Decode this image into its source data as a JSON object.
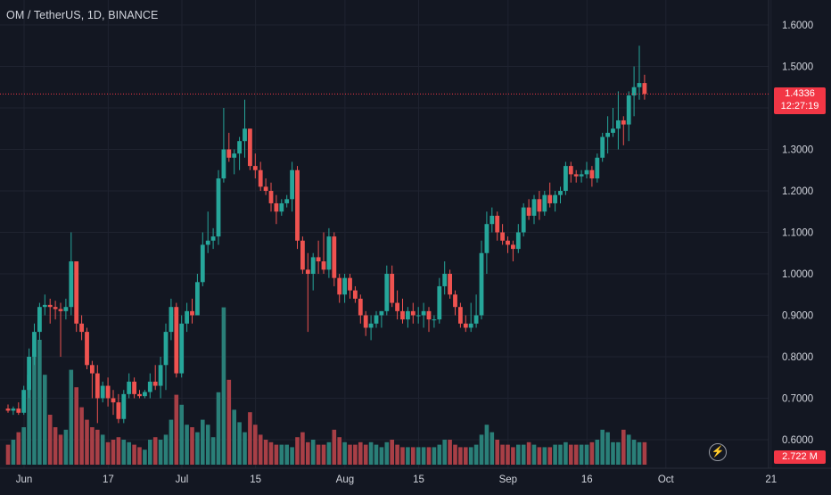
{
  "header": {
    "title": "OM / TetherUS, 1D, BINANCE"
  },
  "price_tag": {
    "price": "1.4336",
    "countdown": "12:27:19"
  },
  "volume_tag": {
    "value": "2.722 M"
  },
  "colors": {
    "up": "#26a69a",
    "down": "#ef5350",
    "vol_up": "#2a7f78",
    "vol_down": "#a83f46",
    "grid": "#1f2330",
    "text": "#d1d4dc",
    "price_line": "#f23645"
  },
  "chart_data": {
    "type": "candlestick",
    "title": "OM / TetherUS, 1D, BINANCE",
    "y_ticks": [
      "1.6000",
      "1.5000",
      "1.4000",
      "1.3000",
      "1.2000",
      "1.1000",
      "1.0000",
      "0.9000",
      "0.8000",
      "0.7000",
      "0.6000"
    ],
    "x_ticks": [
      {
        "label": "Jun",
        "day": 0
      },
      {
        "label": "17",
        "day": 16
      },
      {
        "label": "Jul",
        "day": 30
      },
      {
        "label": "15",
        "day": 44
      },
      {
        "label": "Aug",
        "day": 61
      },
      {
        "label": "15",
        "day": 75
      },
      {
        "label": "Sep",
        "day": 92
      },
      {
        "label": "16",
        "day": 107
      },
      {
        "label": "Oct",
        "day": 122
      },
      {
        "label": "21",
        "day": 142
      }
    ],
    "ylim": [
      0.55,
      1.66
    ],
    "grid": true,
    "last_price": 1.4336,
    "candles": [
      [
        0.675,
        0.685,
        0.665,
        0.67
      ],
      [
        0.67,
        0.68,
        0.66,
        0.675
      ],
      [
        0.675,
        0.69,
        0.66,
        0.665
      ],
      [
        0.665,
        0.73,
        0.66,
        0.72
      ],
      [
        0.72,
        0.82,
        0.7,
        0.8
      ],
      [
        0.8,
        0.88,
        0.78,
        0.86
      ],
      [
        0.86,
        0.93,
        0.84,
        0.92
      ],
      [
        0.92,
        0.95,
        0.9,
        0.925
      ],
      [
        0.925,
        0.94,
        0.88,
        0.92
      ],
      [
        0.92,
        0.935,
        0.89,
        0.915
      ],
      [
        0.915,
        0.93,
        0.8,
        0.91
      ],
      [
        0.91,
        0.94,
        0.89,
        0.92
      ],
      [
        0.92,
        1.1,
        0.9,
        1.03
      ],
      [
        1.03,
        1.03,
        0.86,
        0.88
      ],
      [
        0.88,
        0.9,
        0.84,
        0.86
      ],
      [
        0.86,
        0.87,
        0.77,
        0.78
      ],
      [
        0.78,
        0.79,
        0.7,
        0.76
      ],
      [
        0.76,
        0.78,
        0.64,
        0.7
      ],
      [
        0.7,
        0.74,
        0.69,
        0.73
      ],
      [
        0.73,
        0.75,
        0.68,
        0.7
      ],
      [
        0.7,
        0.72,
        0.66,
        0.69
      ],
      [
        0.69,
        0.71,
        0.64,
        0.65
      ],
      [
        0.65,
        0.72,
        0.64,
        0.71
      ],
      [
        0.71,
        0.76,
        0.7,
        0.74
      ],
      [
        0.74,
        0.75,
        0.7,
        0.71
      ],
      [
        0.71,
        0.72,
        0.7,
        0.705
      ],
      [
        0.705,
        0.72,
        0.7,
        0.715
      ],
      [
        0.715,
        0.76,
        0.7,
        0.74
      ],
      [
        0.74,
        0.78,
        0.72,
        0.73
      ],
      [
        0.73,
        0.8,
        0.7,
        0.78
      ],
      [
        0.78,
        0.88,
        0.72,
        0.86
      ],
      [
        0.86,
        0.94,
        0.84,
        0.92
      ],
      [
        0.92,
        0.93,
        0.75,
        0.76
      ],
      [
        0.76,
        0.9,
        0.75,
        0.88
      ],
      [
        0.88,
        0.93,
        0.86,
        0.91
      ],
      [
        0.91,
        0.94,
        0.88,
        0.9
      ],
      [
        0.9,
        1.0,
        0.9,
        0.98
      ],
      [
        0.98,
        1.1,
        0.97,
        1.07
      ],
      [
        1.07,
        1.15,
        1.05,
        1.08
      ],
      [
        1.08,
        1.11,
        1.06,
        1.09
      ],
      [
        1.09,
        1.25,
        1.07,
        1.23
      ],
      [
        1.23,
        1.4,
        1.22,
        1.3
      ],
      [
        1.3,
        1.34,
        1.27,
        1.28
      ],
      [
        1.28,
        1.3,
        1.24,
        1.29
      ],
      [
        1.29,
        1.33,
        1.25,
        1.32
      ],
      [
        1.32,
        1.42,
        1.28,
        1.35
      ],
      [
        1.35,
        1.35,
        1.25,
        1.26
      ],
      [
        1.26,
        1.29,
        1.23,
        1.25
      ],
      [
        1.25,
        1.27,
        1.2,
        1.21
      ],
      [
        1.21,
        1.23,
        1.19,
        1.2
      ],
      [
        1.2,
        1.22,
        1.15,
        1.17
      ],
      [
        1.17,
        1.19,
        1.12,
        1.15
      ],
      [
        1.15,
        1.18,
        1.14,
        1.17
      ],
      [
        1.17,
        1.19,
        1.16,
        1.18
      ],
      [
        1.18,
        1.27,
        1.15,
        1.25
      ],
      [
        1.25,
        1.26,
        1.06,
        1.08
      ],
      [
        1.08,
        1.09,
        1.0,
        1.01
      ],
      [
        1.01,
        1.05,
        0.86,
        1.0
      ],
      [
        1.0,
        1.05,
        0.96,
        1.04
      ],
      [
        1.04,
        1.08,
        1.0,
        1.03
      ],
      [
        1.03,
        1.1,
        1.0,
        1.01
      ],
      [
        1.01,
        1.11,
        0.99,
        1.09
      ],
      [
        1.09,
        1.1,
        0.97,
        0.99
      ],
      [
        0.99,
        1.0,
        0.93,
        0.95
      ],
      [
        0.95,
        1.0,
        0.93,
        0.99
      ],
      [
        0.99,
        1.0,
        0.94,
        0.96
      ],
      [
        0.96,
        0.97,
        0.93,
        0.94
      ],
      [
        0.94,
        0.95,
        0.88,
        0.9
      ],
      [
        0.9,
        0.91,
        0.85,
        0.87
      ],
      [
        0.87,
        0.9,
        0.84,
        0.88
      ],
      [
        0.88,
        0.91,
        0.87,
        0.9
      ],
      [
        0.9,
        0.91,
        0.87,
        0.91
      ],
      [
        0.91,
        1.02,
        0.9,
        1.0
      ],
      [
        1.0,
        1.02,
        0.92,
        0.93
      ],
      [
        0.93,
        0.96,
        0.89,
        0.91
      ],
      [
        0.91,
        0.94,
        0.88,
        0.89
      ],
      [
        0.89,
        0.92,
        0.87,
        0.91
      ],
      [
        0.91,
        0.93,
        0.88,
        0.9
      ],
      [
        0.9,
        0.92,
        0.88,
        0.9
      ],
      [
        0.9,
        0.93,
        0.87,
        0.91
      ],
      [
        0.91,
        0.92,
        0.86,
        0.89
      ],
      [
        0.89,
        0.9,
        0.87,
        0.89
      ],
      [
        0.89,
        0.99,
        0.88,
        0.97
      ],
      [
        0.97,
        1.03,
        0.95,
        1.0
      ],
      [
        1.0,
        1.01,
        0.94,
        0.95
      ],
      [
        0.95,
        0.96,
        0.9,
        0.92
      ],
      [
        0.92,
        0.93,
        0.87,
        0.88
      ],
      [
        0.88,
        0.9,
        0.86,
        0.87
      ],
      [
        0.87,
        0.93,
        0.86,
        0.88
      ],
      [
        0.88,
        0.95,
        0.87,
        0.9
      ],
      [
        0.9,
        1.08,
        0.89,
        1.05
      ],
      [
        1.05,
        1.15,
        1.0,
        1.12
      ],
      [
        1.12,
        1.16,
        1.1,
        1.14
      ],
      [
        1.14,
        1.15,
        1.08,
        1.1
      ],
      [
        1.1,
        1.12,
        1.07,
        1.08
      ],
      [
        1.08,
        1.09,
        1.05,
        1.07
      ],
      [
        1.07,
        1.08,
        1.03,
        1.06
      ],
      [
        1.06,
        1.12,
        1.05,
        1.1
      ],
      [
        1.1,
        1.17,
        1.09,
        1.16
      ],
      [
        1.16,
        1.18,
        1.13,
        1.14
      ],
      [
        1.14,
        1.19,
        1.12,
        1.18
      ],
      [
        1.18,
        1.2,
        1.13,
        1.15
      ],
      [
        1.15,
        1.2,
        1.14,
        1.19
      ],
      [
        1.19,
        1.22,
        1.16,
        1.17
      ],
      [
        1.17,
        1.2,
        1.15,
        1.19
      ],
      [
        1.19,
        1.21,
        1.17,
        1.2
      ],
      [
        1.2,
        1.27,
        1.19,
        1.26
      ],
      [
        1.26,
        1.27,
        1.22,
        1.24
      ],
      [
        1.24,
        1.25,
        1.22,
        1.235
      ],
      [
        1.235,
        1.25,
        1.22,
        1.24
      ],
      [
        1.24,
        1.27,
        1.23,
        1.25
      ],
      [
        1.25,
        1.26,
        1.21,
        1.23
      ],
      [
        1.23,
        1.29,
        1.22,
        1.28
      ],
      [
        1.28,
        1.34,
        1.27,
        1.33
      ],
      [
        1.33,
        1.38,
        1.29,
        1.34
      ],
      [
        1.34,
        1.4,
        1.33,
        1.35
      ],
      [
        1.35,
        1.44,
        1.3,
        1.37
      ],
      [
        1.37,
        1.38,
        1.31,
        1.36
      ],
      [
        1.36,
        1.44,
        1.32,
        1.43
      ],
      [
        1.43,
        1.5,
        1.38,
        1.45
      ],
      [
        1.45,
        1.55,
        1.42,
        1.46
      ],
      [
        1.46,
        1.48,
        1.42,
        1.4336
      ]
    ],
    "volume": [
      0.8,
      1.0,
      1.3,
      1.5,
      3.6,
      4.6,
      5.0,
      3.6,
      2.0,
      1.5,
      1.2,
      1.4,
      3.8,
      3.1,
      2.3,
      1.8,
      1.5,
      1.4,
      1.2,
      0.9,
      1.0,
      1.1,
      1.0,
      0.9,
      0.8,
      0.7,
      0.6,
      1.0,
      1.1,
      1.0,
      1.2,
      1.8,
      2.8,
      2.4,
      1.6,
      1.5,
      1.3,
      1.8,
      1.6,
      1.1,
      2.9,
      6.3,
      3.4,
      2.2,
      1.7,
      1.3,
      2.1,
      1.6,
      1.2,
      1.0,
      0.9,
      0.8,
      0.8,
      0.8,
      0.7,
      1.1,
      1.3,
      0.9,
      1.0,
      0.8,
      0.8,
      0.9,
      1.4,
      1.1,
      0.9,
      0.8,
      0.8,
      0.9,
      0.8,
      0.9,
      0.8,
      0.7,
      0.9,
      1.0,
      0.8,
      0.7,
      0.7,
      0.7,
      0.7,
      0.7,
      0.7,
      0.7,
      0.8,
      1.0,
      1.0,
      0.8,
      0.7,
      0.7,
      0.7,
      0.8,
      1.2,
      1.6,
      1.3,
      1.0,
      0.8,
      0.8,
      0.7,
      0.8,
      0.8,
      0.9,
      0.8,
      0.7,
      0.7,
      0.7,
      0.8,
      0.8,
      0.9,
      0.8,
      0.8,
      0.8,
      0.8,
      0.9,
      1.0,
      1.4,
      1.3,
      0.9,
      0.9,
      1.4,
      1.2,
      1.0,
      0.9,
      0.9
    ]
  }
}
